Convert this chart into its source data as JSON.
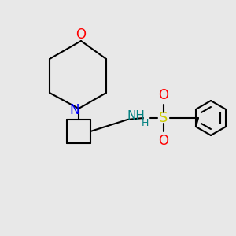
{
  "bg_color": "#e8e8e8",
  "bond_color": "#000000",
  "bond_width": 1.5,
  "atom_colors": {
    "O": "#ff0000",
    "N": "#0000ff",
    "S": "#cccc00",
    "NH": "#008080",
    "H": "#008080"
  },
  "figsize": [
    3.0,
    3.0
  ],
  "dpi": 100
}
